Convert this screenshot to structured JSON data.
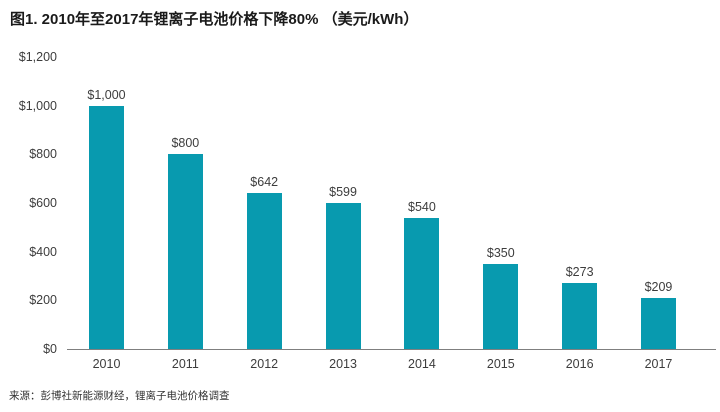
{
  "title": "图1. 2010年至2017年锂离子电池价格下降80% （美元/kWh）",
  "source_note": "来源：彭博社新能源财经，锂离子电池价格调查",
  "chart_data": {
    "type": "bar",
    "title": "图1. 2010年至2017年锂离子电池价格下降80% （美元/kWh）",
    "categories": [
      "2010",
      "2011",
      "2012",
      "2013",
      "2014",
      "2015",
      "2016",
      "2017"
    ],
    "values": [
      1000,
      800,
      642,
      599,
      540,
      350,
      273,
      209
    ],
    "value_labels": [
      "$1,000",
      "$800",
      "$642",
      "$599",
      "$540",
      "$350",
      "$273",
      "$209"
    ],
    "xlabel": "",
    "ylabel": "",
    "ylim": [
      0,
      1200
    ],
    "y_ticks": [
      {
        "label": "$0",
        "value": 0
      },
      {
        "label": "$200",
        "value": 200
      },
      {
        "label": "$400",
        "value": 400
      },
      {
        "label": "$600",
        "value": 600
      },
      {
        "label": "$800",
        "value": 800
      },
      {
        "label": "$1,000",
        "value": 1000
      },
      {
        "label": "$1,200",
        "value": 1200
      }
    ],
    "grid": false,
    "legend": "none",
    "bar_color": "#089AAF",
    "axis_color": "#7f7f7f",
    "label_color": "#3d3d3d",
    "source": "来源：彭博社新能源财经，锂离子电池价格调查"
  }
}
